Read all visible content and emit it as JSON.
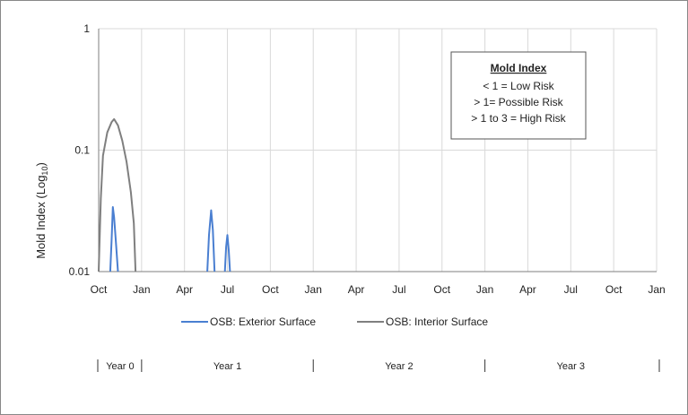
{
  "chart_data": {
    "type": "line",
    "title": "",
    "xlabel": "",
    "ylabel": "Mold Index (Log",
    "ylabel_subscript": "10",
    "ylabel_close": ")",
    "y_scale": "log",
    "ylim": [
      0.01,
      1
    ],
    "y_ticks": [
      "1",
      "0.1",
      "0.01"
    ],
    "x_ticks": [
      "Oct",
      "Jan",
      "Apr",
      "Jul",
      "Oct",
      "Jan",
      "Apr",
      "Jul",
      "Oct",
      "Jan",
      "Apr",
      "Jul",
      "Oct",
      "Jan"
    ],
    "grid": true,
    "series": [
      {
        "name": "OSB: Exterior Surface",
        "color": "#4a7fd1",
        "segments": [
          [
            [
              0.27,
              0.01
            ],
            [
              0.3,
              0.018
            ],
            [
              0.33,
              0.034
            ],
            [
              0.36,
              0.028
            ],
            [
              0.4,
              0.018
            ],
            [
              0.45,
              0.01
            ]
          ],
          [
            [
              2.53,
              0.01
            ],
            [
              2.57,
              0.02
            ],
            [
              2.62,
              0.032
            ],
            [
              2.66,
              0.022
            ],
            [
              2.7,
              0.01
            ]
          ],
          [
            [
              2.94,
              0.01
            ],
            [
              2.97,
              0.016
            ],
            [
              3.0,
              0.02
            ],
            [
              3.03,
              0.015
            ],
            [
              3.06,
              0.01
            ]
          ]
        ]
      },
      {
        "name": "OSB: Interior Surface",
        "color": "#7f7f7f",
        "segments": [
          [
            [
              0.0,
              0.01
            ],
            [
              0.05,
              0.04
            ],
            [
              0.1,
              0.09
            ],
            [
              0.2,
              0.14
            ],
            [
              0.3,
              0.17
            ],
            [
              0.36,
              0.18
            ],
            [
              0.45,
              0.16
            ],
            [
              0.55,
              0.12
            ],
            [
              0.65,
              0.08
            ],
            [
              0.75,
              0.045
            ],
            [
              0.82,
              0.025
            ],
            [
              0.86,
              0.01
            ]
          ]
        ]
      }
    ],
    "legend_position": "bottom",
    "period_labels": [
      "Year 0",
      "Year 1",
      "Year 2",
      "Year 3"
    ],
    "period_bounds": [
      0,
      1,
      5,
      9,
      13
    ],
    "annotation": {
      "title": "Mold Index",
      "lines": [
        "< 1 = Low Risk",
        "> 1= Possible Risk",
        "> 1 to 3 = High Risk"
      ]
    }
  }
}
